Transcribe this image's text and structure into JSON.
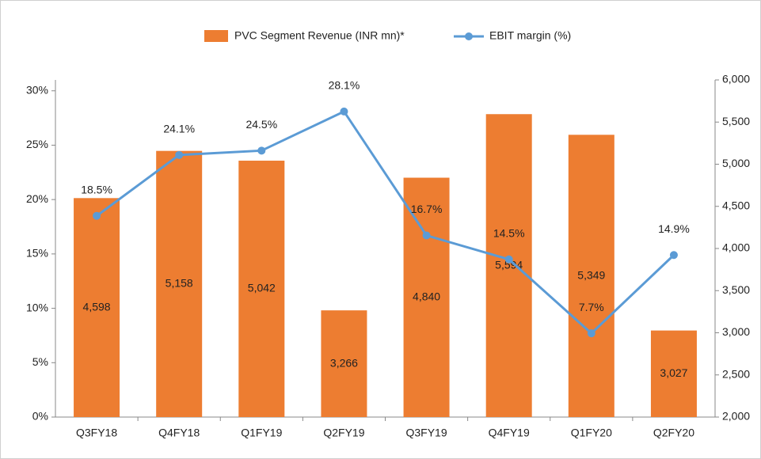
{
  "chart_data": {
    "type": "bar_line",
    "categories": [
      "Q3FY18",
      "Q4FY18",
      "Q1FY19",
      "Q2FY19",
      "Q3FY19",
      "Q4FY19",
      "Q1FY20",
      "Q2FY20"
    ],
    "series": [
      {
        "name": "PVC Segment Revenue (INR mn)*",
        "type": "bar",
        "axis": "y2",
        "color": "#ed7d31",
        "values": [
          4598,
          5158,
          5042,
          3266,
          4840,
          5594,
          5349,
          3027
        ],
        "value_labels": [
          "4,598",
          "5,158",
          "5,042",
          "3,266",
          "4,840",
          "5,594",
          "5,349",
          "3,027"
        ]
      },
      {
        "name": "EBIT margin (%)",
        "type": "line",
        "axis": "y",
        "color": "#5b9bd5",
        "values": [
          18.5,
          24.1,
          24.5,
          28.1,
          16.7,
          14.5,
          7.7,
          14.9
        ],
        "value_labels": [
          "18.5%",
          "24.1%",
          "24.5%",
          "28.1%",
          "16.7%",
          "14.5%",
          "7.7%",
          "14.9%"
        ]
      }
    ],
    "ylim": [
      0,
      31
    ],
    "yticks": [
      {
        "value": 0,
        "label": "0%"
      },
      {
        "value": 5,
        "label": "5%"
      },
      {
        "value": 10,
        "label": "10%"
      },
      {
        "value": 15,
        "label": "15%"
      },
      {
        "value": 20,
        "label": "20%"
      },
      {
        "value": 25,
        "label": "25%"
      },
      {
        "value": 30,
        "label": "30%"
      }
    ],
    "y2lim": [
      2000,
      6000
    ],
    "y2ticks": [
      {
        "value": 2000,
        "label": "2,000"
      },
      {
        "value": 2500,
        "label": "2,500"
      },
      {
        "value": 3000,
        "label": "3,000"
      },
      {
        "value": 3500,
        "label": "3,500"
      },
      {
        "value": 4000,
        "label": "4,000"
      },
      {
        "value": 4500,
        "label": "4,500"
      },
      {
        "value": 5000,
        "label": "5,000"
      },
      {
        "value": 5500,
        "label": "5,500"
      },
      {
        "value": 6000,
        "label": "6,000"
      }
    ],
    "legend": "top"
  }
}
